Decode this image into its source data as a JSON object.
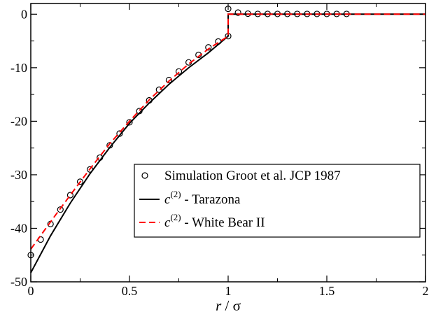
{
  "chart_data": {
    "type": "line",
    "title": "",
    "xlabel_italic": "r",
    "xlabel_rest": " / σ",
    "ylabel": "",
    "xlim": [
      0,
      2
    ],
    "ylim": [
      -50,
      2
    ],
    "x_ticks": [
      0,
      0.5,
      1,
      1.5,
      2
    ],
    "x_tick_labels": [
      "0",
      "0.5",
      "1",
      "1.5",
      "2"
    ],
    "y_ticks": [
      0,
      -10,
      -20,
      -30,
      -40,
      -50
    ],
    "y_tick_labels": [
      "0",
      "-10",
      "-20",
      "-30",
      "-40",
      "-50"
    ],
    "legend_placement": "center-right",
    "series": [
      {
        "name": "Simulation Groot et al. JCP 1987",
        "legend_main": "Simulation Groot et al. JCP 1987",
        "style": "markers",
        "marker": "open-circle",
        "color": "#000000",
        "x": [
          0,
          0.05,
          0.1,
          0.15,
          0.2,
          0.25,
          0.3,
          0.35,
          0.4,
          0.45,
          0.5,
          0.55,
          0.6,
          0.65,
          0.7,
          0.75,
          0.8,
          0.85,
          0.9,
          0.95,
          1.0,
          1.0,
          1.05,
          1.1,
          1.15,
          1.2,
          1.25,
          1.3,
          1.35,
          1.4,
          1.45,
          1.5,
          1.55,
          1.6
        ],
        "y": [
          -45.0,
          -42.1,
          -39.2,
          -36.5,
          -33.8,
          -31.3,
          -29.0,
          -26.8,
          -24.5,
          -22.3,
          -20.2,
          -18.1,
          -16.1,
          -14.1,
          -12.3,
          -10.7,
          -9.0,
          -7.6,
          -6.2,
          -5.1,
          -4.1,
          1.0,
          0.3,
          0.1,
          0.05,
          0.05,
          0.05,
          0.05,
          0.05,
          0.05,
          0.05,
          0.05,
          0.05,
          0.05
        ]
      },
      {
        "name": "c(2) - Tarazona",
        "legend_main": "c",
        "legend_sup": "(2)",
        "legend_rest": " - Tarazona",
        "style": "solid",
        "color": "#000000",
        "x": [
          0,
          0.1,
          0.2,
          0.3,
          0.4,
          0.5,
          0.6,
          0.7,
          0.8,
          0.9,
          1.0,
          1.0,
          2.0
        ],
        "y": [
          -48.3,
          -41.4,
          -35.3,
          -29.8,
          -24.9,
          -20.4,
          -16.6,
          -13.1,
          -10.0,
          -7.2,
          -4.1,
          0,
          0
        ]
      },
      {
        "name": "c(2) - White Bear II",
        "legend_main": "c",
        "legend_sup": "(2)",
        "legend_rest": " - White Bear II",
        "style": "dashed",
        "color": "#ff0000",
        "x": [
          0,
          0.1,
          0.2,
          0.3,
          0.4,
          0.5,
          0.6,
          0.7,
          0.8,
          0.9,
          1.0,
          1.0,
          2.0
        ],
        "y": [
          -43.9,
          -38.8,
          -33.8,
          -28.9,
          -24.2,
          -20.0,
          -16.0,
          -12.5,
          -9.3,
          -6.5,
          -4.1,
          0,
          0
        ]
      }
    ]
  }
}
